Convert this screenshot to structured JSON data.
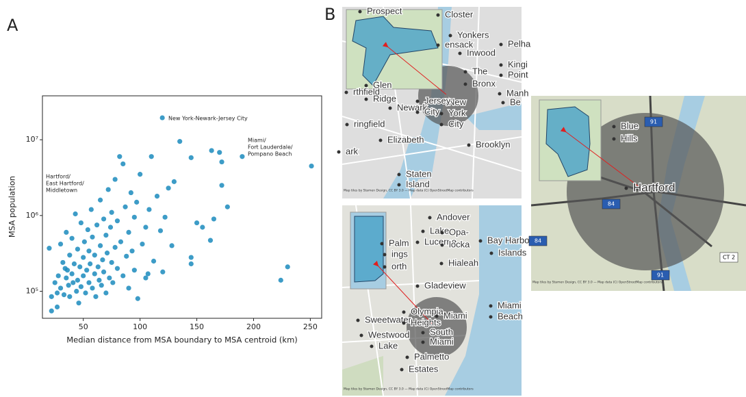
{
  "chart_data": {
    "type": "scatter",
    "panel_label": "A",
    "x_label": "Median distance from MSA boundary to MSA centroid (km)",
    "y_label": "MSA population",
    "color": "#1b8bbd",
    "log_y": true,
    "xlim": [
      14,
      260
    ],
    "xticks": [
      50,
      100,
      150,
      200,
      250
    ],
    "ylim": [
      44000,
      38000000
    ],
    "yticks": [
      {
        "value": 100000,
        "label": "10⁵"
      },
      {
        "value": 1000000,
        "label": "10⁶"
      },
      {
        "value": 10000000,
        "label": "10⁷"
      }
    ],
    "annotations": [
      [
        "New York-Newark-Jersey City"
      ],
      [
        "Miami/",
        "Fort Lauderdale/",
        "Pompano Beach"
      ],
      [
        "Hartford/",
        "East Hartford/",
        "Middletown"
      ]
    ],
    "x": [
      20,
      22,
      25,
      27,
      28,
      30,
      30,
      32,
      33,
      35,
      35,
      36,
      37,
      38,
      38,
      40,
      40,
      41,
      42,
      43,
      44,
      45,
      45,
      46,
      47,
      48,
      48,
      50,
      50,
      51,
      52,
      53,
      54,
      55,
      55,
      56,
      57,
      58,
      58,
      60,
      60,
      61,
      62,
      63,
      64,
      65,
      65,
      66,
      67,
      68,
      68,
      70,
      70,
      71,
      72,
      73,
      74,
      75,
      75,
      76,
      78,
      78,
      80,
      80,
      82,
      83,
      85,
      85,
      87,
      88,
      90,
      90,
      92,
      93,
      95,
      95,
      97,
      98,
      100,
      102,
      105,
      105,
      108,
      110,
      112,
      115,
      118,
      120,
      122,
      125,
      128,
      130,
      135,
      145,
      163,
      170,
      190,
      172,
      172,
      177,
      150,
      155,
      165,
      162,
      145,
      145,
      107,
      230,
      224,
      119.6,
      251,
      22,
      27,
      34
    ],
    "values": [
      370000,
      85000,
      130000,
      95000,
      160000,
      420000,
      110000,
      240000,
      90000,
      150000,
      600000,
      190000,
      120000,
      300000,
      85000,
      170000,
      500000,
      130000,
      230000,
      1050000,
      100000,
      360000,
      140000,
      70000,
      210000,
      800000,
      115000,
      280000,
      160000,
      450000,
      95000,
      190000,
      650000,
      130000,
      340000,
      230000,
      1200000,
      110000,
      520000,
      170000,
      300000,
      85000,
      750000,
      210000,
      140000,
      1600000,
      400000,
      120000,
      260000,
      900000,
      180000,
      550000,
      95000,
      320000,
      2200000,
      150000,
      700000,
      240000,
      1100000,
      130000,
      380000,
      3000000,
      200000,
      850000,
      6000000,
      450000,
      4800000,
      160000,
      1300000,
      290000,
      600000,
      110000,
      2000000,
      340000,
      950000,
      190000,
      1500000,
      80000,
      3500000,
      420000,
      700000,
      150000,
      1200000,
      6000000,
      250000,
      1800000,
      630000,
      180000,
      950000,
      2300000,
      400000,
      2800000,
      9500000,
      5800000,
      7200000,
      6800000,
      6000000,
      5100000,
      2500000,
      1300000,
      800000,
      700000,
      900000,
      470000,
      280000,
      230000,
      170000,
      210000,
      140000,
      19500000,
      4500000,
      55000,
      62000,
      200000
    ]
  },
  "maps": {
    "panel_label": "B",
    "attribution": "Map tiles by Stamen Design, CC BY 3.0 — Map data (C) OpenStreetMap contributors",
    "panels": [
      {
        "labels": [
          "Prospect",
          "Closter",
          "Yonkers",
          "ensack",
          "Inwood",
          "Pelha",
          "The",
          "Bronx",
          "Kingi",
          "Point",
          "New",
          "York",
          "City",
          "rthfield",
          "Glen",
          "Ridge",
          "Newark",
          "Jersey",
          "City",
          "Manh",
          "Be",
          "ringfield",
          "Elizabeth",
          "Brooklyn",
          "ark",
          "Staten",
          "Island"
        ]
      },
      {
        "labels": [
          "Andover",
          "Lake",
          "Lucerne",
          "Opa-",
          "locka",
          "Bay Harbo",
          "Islands",
          "Palm",
          "ings",
          "orth",
          "Hialeah",
          "Gladeview",
          "Miami",
          "Beach",
          "Sweetwater",
          "Olympia",
          "Heights",
          "Miami",
          "South",
          "Miami",
          "Westwood",
          "Lake",
          "Palmetto",
          "Estates"
        ]
      },
      {
        "labels": [
          "Blue",
          "Hills",
          "Hartford",
          "CT 2",
          "91",
          "84",
          "84",
          "91"
        ]
      }
    ]
  }
}
